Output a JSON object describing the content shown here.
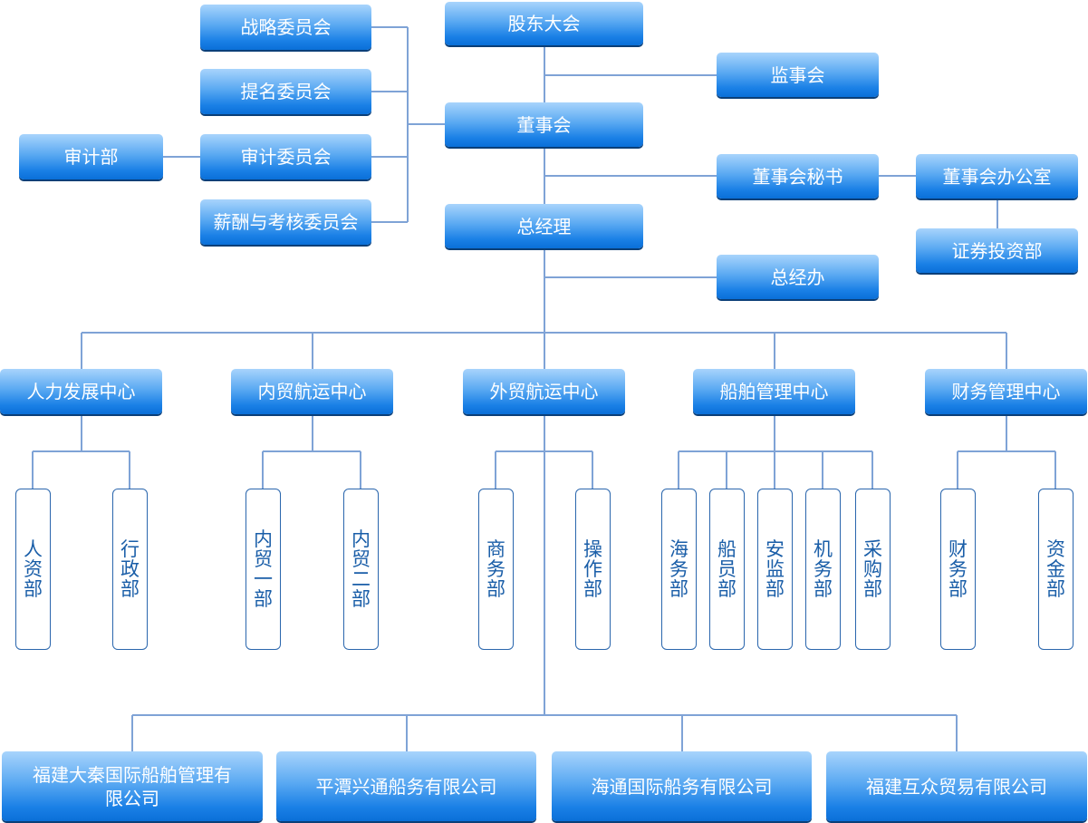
{
  "top": {
    "shareholders": "股东大会",
    "supervisors": "监事会",
    "board": "董事会",
    "board_secretary": "董事会秘书",
    "board_office": "董事会办公室",
    "securities": "证券投资部",
    "gm": "总经理",
    "gm_office": "总经办"
  },
  "committees": [
    "战略委员会",
    "提名委员会",
    "审计委员会",
    "薪酬与考核委员会"
  ],
  "audit_dept": "审计部",
  "centers": [
    {
      "name": "人力发展中心",
      "depts": [
        "人资部",
        "行政部"
      ]
    },
    {
      "name": "内贸航运中心",
      "depts": [
        "内贸一部",
        "内贸二部"
      ]
    },
    {
      "name": "外贸航运中心",
      "depts": [
        "商务部",
        "操作部"
      ]
    },
    {
      "name": "船舶管理中心",
      "depts": [
        "海务部",
        "船员部",
        "安监部",
        "机务部",
        "采购部"
      ]
    },
    {
      "name": "财务管理中心",
      "depts": [
        "财务部",
        "资金部"
      ]
    }
  ],
  "subsidiaries": [
    "福建大秦国际船舶管理有限公司",
    "平潭兴通船务有限公司",
    "海通国际船务有限公司",
    "福建互众贸易有限公司"
  ],
  "colors": {
    "line": "#7fa3d6",
    "box_top": "#a8d4fc",
    "box_bottom": "#0a6fd8",
    "dept_border": "#2a66ad",
    "dept_text": "#1a5ea8"
  }
}
